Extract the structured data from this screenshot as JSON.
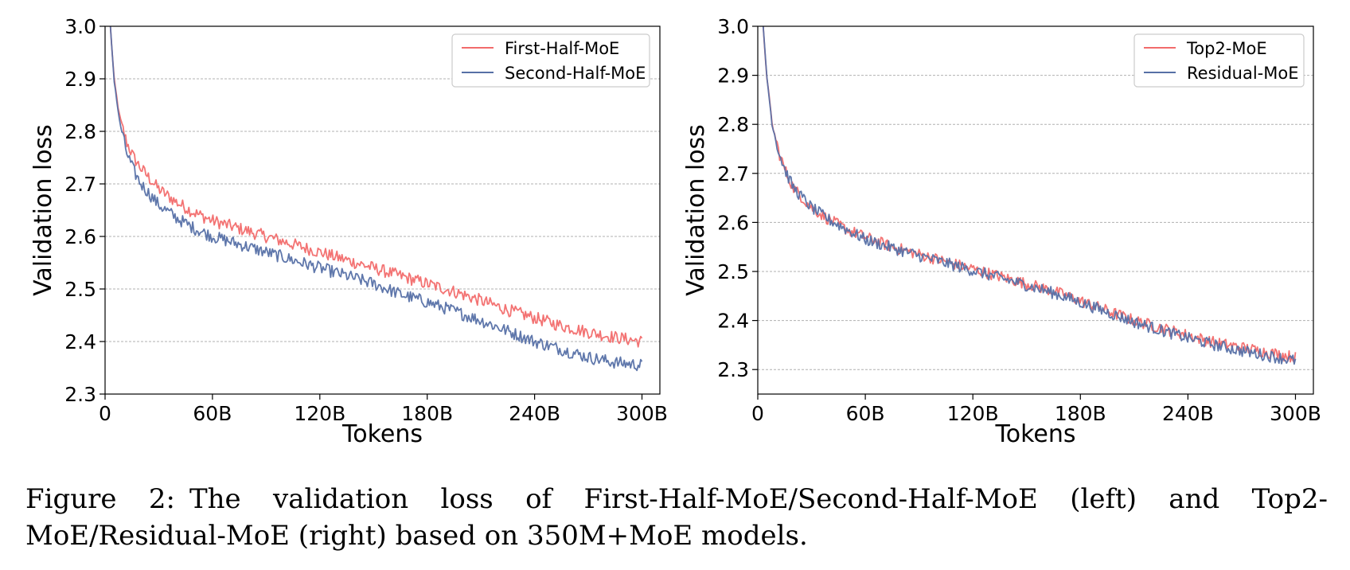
{
  "chart_data": [
    {
      "type": "line",
      "xlabel": "Tokens",
      "ylabel": "Validation loss",
      "xlim": [
        0,
        310
      ],
      "ylim": [
        2.3,
        3.0
      ],
      "xticks": [
        0,
        60,
        120,
        180,
        240,
        300
      ],
      "xtick_labels": [
        "0",
        "60B",
        "120B",
        "180B",
        "240B",
        "300B"
      ],
      "yticks": [
        2.3,
        2.4,
        2.5,
        2.6,
        2.7,
        2.8,
        2.9,
        3.0
      ],
      "ytick_labels": [
        "2.3",
        "2.4",
        "2.5",
        "2.6",
        "2.7",
        "2.8",
        "2.9",
        "3.0"
      ],
      "grid": "horizontal dashed",
      "legend_position": "top-right",
      "series": [
        {
          "name": "First-Half-MoE",
          "color": "#f26b6b",
          "x": [
            3,
            5,
            8,
            12,
            16,
            20,
            30,
            40,
            50,
            60,
            75,
            90,
            105,
            120,
            135,
            150,
            165,
            180,
            195,
            210,
            225,
            240,
            255,
            270,
            285,
            300
          ],
          "y": [
            3.0,
            2.9,
            2.83,
            2.78,
            2.75,
            2.73,
            2.69,
            2.665,
            2.645,
            2.63,
            2.615,
            2.6,
            2.585,
            2.57,
            2.555,
            2.54,
            2.525,
            2.51,
            2.495,
            2.478,
            2.46,
            2.445,
            2.43,
            2.418,
            2.408,
            2.4
          ]
        },
        {
          "name": "Second-Half-MoE",
          "color": "#5670a6",
          "x": [
            3,
            5,
            8,
            12,
            16,
            20,
            30,
            40,
            50,
            60,
            75,
            90,
            105,
            120,
            135,
            150,
            165,
            180,
            195,
            210,
            225,
            240,
            255,
            270,
            285,
            300
          ],
          "y": [
            3.0,
            2.9,
            2.82,
            2.76,
            2.725,
            2.7,
            2.66,
            2.635,
            2.615,
            2.6,
            2.585,
            2.57,
            2.555,
            2.54,
            2.525,
            2.51,
            2.49,
            2.475,
            2.458,
            2.44,
            2.42,
            2.4,
            2.385,
            2.37,
            2.36,
            2.355
          ]
        }
      ]
    },
    {
      "type": "line",
      "xlabel": "Tokens",
      "ylabel": "Validation loss",
      "xlim": [
        0,
        310
      ],
      "ylim": [
        2.25,
        3.0
      ],
      "xticks": [
        0,
        60,
        120,
        180,
        240,
        300
      ],
      "xtick_labels": [
        "0",
        "60B",
        "120B",
        "180B",
        "240B",
        "300B"
      ],
      "yticks": [
        2.3,
        2.4,
        2.5,
        2.6,
        2.7,
        2.8,
        2.9,
        3.0
      ],
      "ytick_labels": [
        "2.3",
        "2.4",
        "2.5",
        "2.6",
        "2.7",
        "2.8",
        "2.9",
        "3.0"
      ],
      "grid": "horizontal dashed",
      "legend_position": "top-right",
      "series": [
        {
          "name": "Top2-MoE",
          "color": "#f26b6b",
          "x": [
            3,
            5,
            8,
            12,
            16,
            20,
            30,
            40,
            50,
            60,
            75,
            90,
            105,
            120,
            135,
            150,
            165,
            180,
            195,
            210,
            225,
            240,
            255,
            270,
            285,
            300
          ],
          "y": [
            3.0,
            2.9,
            2.8,
            2.74,
            2.7,
            2.67,
            2.63,
            2.605,
            2.585,
            2.57,
            2.55,
            2.535,
            2.52,
            2.505,
            2.49,
            2.475,
            2.46,
            2.44,
            2.42,
            2.4,
            2.385,
            2.37,
            2.355,
            2.345,
            2.335,
            2.325
          ]
        },
        {
          "name": "Residual-MoE",
          "color": "#5670a6",
          "x": [
            3,
            5,
            8,
            12,
            16,
            20,
            30,
            40,
            50,
            60,
            75,
            90,
            105,
            120,
            135,
            150,
            165,
            180,
            195,
            210,
            225,
            240,
            255,
            270,
            285,
            300
          ],
          "y": [
            3.0,
            2.9,
            2.8,
            2.74,
            2.7,
            2.67,
            2.63,
            2.605,
            2.585,
            2.565,
            2.548,
            2.532,
            2.517,
            2.502,
            2.487,
            2.472,
            2.456,
            2.437,
            2.417,
            2.397,
            2.38,
            2.364,
            2.35,
            2.338,
            2.328,
            2.318
          ]
        }
      ]
    }
  ],
  "caption": {
    "label": "Figure 2:",
    "text": "The validation loss of First-Half-MoE/Second-Half-MoE (left) and Top2-MoE/Residual-MoE (right) based on 350M+MoE models."
  }
}
